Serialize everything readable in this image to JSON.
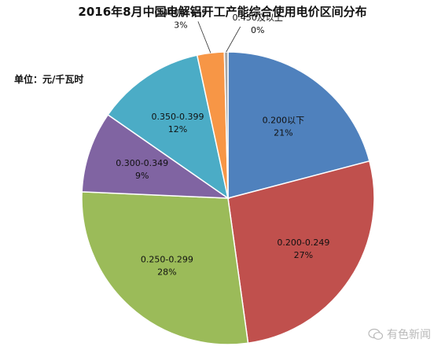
{
  "chart_data": {
    "type": "pie",
    "title": "2016年8月中国电解铝开工产能综合使用电价区间分布",
    "unit_note": "单位：元/千瓦时",
    "slices": [
      {
        "category": "0.200以下",
        "value": 21,
        "label": "21%",
        "color": "#4f81bd"
      },
      {
        "category": "0.200-0.249",
        "value": 27,
        "label": "27%",
        "color": "#c0504d"
      },
      {
        "category": "0.250-0.299",
        "value": 28,
        "label": "28%",
        "color": "#9bbb59"
      },
      {
        "category": "0.300-0.349",
        "value": 9,
        "label": "9%",
        "color": "#8064a2"
      },
      {
        "category": "0.350-0.399",
        "value": 12,
        "label": "12%",
        "color": "#4bacc6"
      },
      {
        "category": "0.400-0.449",
        "value": 3,
        "label": "3%",
        "color": "#f79646"
      },
      {
        "category": "0.450及以上",
        "value": 0.4,
        "label": "0%",
        "color": "#a5a5a5"
      }
    ]
  },
  "watermark": "有色新闻"
}
